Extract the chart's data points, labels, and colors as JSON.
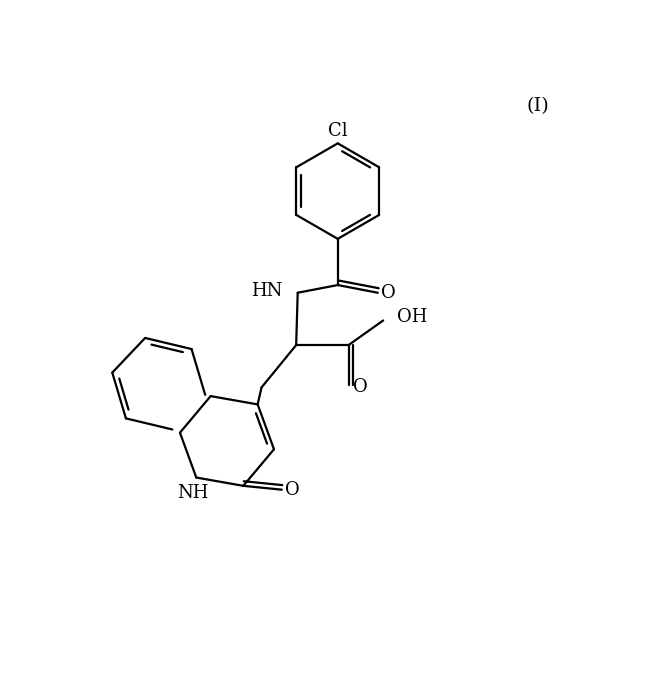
{
  "background_color": "#ffffff",
  "line_color": "#000000",
  "line_width": 1.6,
  "font_size": 13,
  "label_Cl": "Cl",
  "label_HN": "HN",
  "label_OH": "OH",
  "label_O": "O",
  "label_NH": "NH",
  "label_H": "H",
  "label_I": "(I)",
  "figsize": [
    6.56,
    6.75
  ],
  "dpi": 100
}
